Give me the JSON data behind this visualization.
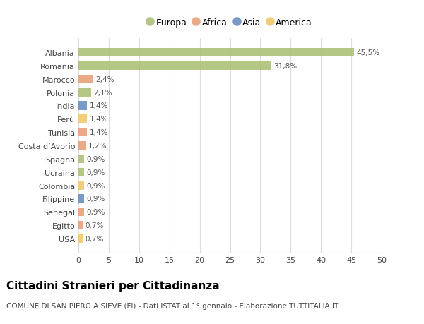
{
  "countries": [
    "Albania",
    "Romania",
    "Marocco",
    "Polonia",
    "India",
    "Perù",
    "Tunisia",
    "Costa d’Avorio",
    "Spagna",
    "Ucraina",
    "Colombia",
    "Filippine",
    "Senegal",
    "Egitto",
    "USA"
  ],
  "values": [
    45.5,
    31.8,
    2.4,
    2.1,
    1.4,
    1.4,
    1.4,
    1.2,
    0.9,
    0.9,
    0.9,
    0.9,
    0.9,
    0.7,
    0.7
  ],
  "labels": [
    "45,5%",
    "31,8%",
    "2,4%",
    "2,1%",
    "1,4%",
    "1,4%",
    "1,4%",
    "1,2%",
    "0,9%",
    "0,9%",
    "0,9%",
    "0,9%",
    "0,9%",
    "0,7%",
    "0,7%"
  ],
  "continents": [
    "Europa",
    "Europa",
    "Africa",
    "Europa",
    "Asia",
    "America",
    "Africa",
    "Africa",
    "Europa",
    "Europa",
    "America",
    "Asia",
    "Africa",
    "Africa",
    "America"
  ],
  "colors": {
    "Europa": "#adc178",
    "Africa": "#e8a07a",
    "Asia": "#6b8fc0",
    "America": "#f0c96a"
  },
  "xlim": [
    0,
    50
  ],
  "xticks": [
    0,
    5,
    10,
    15,
    20,
    25,
    30,
    35,
    40,
    45,
    50
  ],
  "background_color": "#ffffff",
  "plot_bg_color": "#f5f5f5",
  "grid_color": "#dddddd",
  "title": "Cittadini Stranieri per Cittadinanza",
  "subtitle": "COMUNE DI SAN PIERO A SIEVE (FI) - Dati ISTAT al 1° gennaio - Elaborazione TUTTITALIA.IT",
  "title_fontsize": 11,
  "subtitle_fontsize": 7.5,
  "label_fontsize": 7.5,
  "tick_fontsize": 8,
  "legend_order": [
    "Europa",
    "Africa",
    "Asia",
    "America"
  ]
}
